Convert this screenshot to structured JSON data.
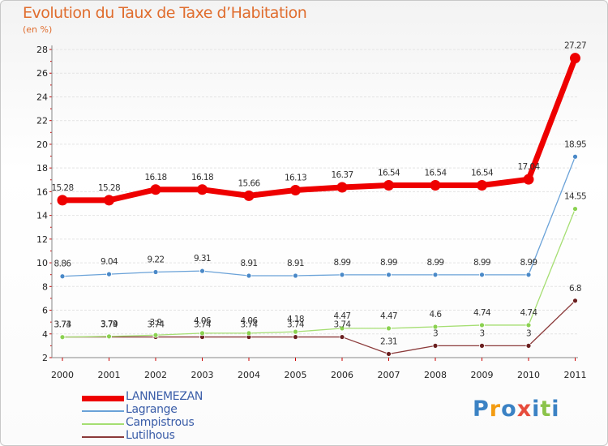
{
  "title": "Evolution du Taux de Taxe d’Habitation",
  "unit": "(en %)",
  "brand": {
    "letters": [
      "P",
      "r",
      "o",
      "x",
      "i",
      "t",
      "i"
    ],
    "colors": [
      "#3b82c4",
      "#f39c12",
      "#3b82c4",
      "#e74c3c",
      "#3b82c4",
      "#8bc34a",
      "#3b82c4"
    ]
  },
  "chart_data": {
    "type": "line",
    "title": "Evolution du Taux de Taxe d’Habitation",
    "ylabel": "(en %)",
    "xlabel": "",
    "x": [
      "2000",
      "2001",
      "2002",
      "2003",
      "2004",
      "2005",
      "2006",
      "2007",
      "2008",
      "2009",
      "2010",
      "2011"
    ],
    "ylim": [
      2,
      28
    ],
    "yticks": [
      "2",
      "4",
      "6",
      "8",
      "10",
      "12",
      "14",
      "16",
      "18",
      "20",
      "22",
      "24",
      "26",
      "28"
    ],
    "grid": "horizontal",
    "legend_position": "bottom-left",
    "series": [
      {
        "name": "LANNEMEZAN",
        "color": "#ee0000",
        "values": [
          15.28,
          15.28,
          16.18,
          16.18,
          15.66,
          16.13,
          16.37,
          16.54,
          16.54,
          16.54,
          17.04,
          27.27
        ],
        "labels": [
          "15.28",
          "15.28",
          "16.18",
          "16.18",
          "15.66",
          "16.13",
          "16.37",
          "16.54",
          "16.54",
          "16.54",
          "17.04",
          "27.27"
        ]
      },
      {
        "name": "Lagrange",
        "color": "#5b9bd5",
        "values": [
          8.86,
          9.04,
          9.22,
          9.31,
          8.91,
          8.91,
          8.99,
          8.99,
          8.99,
          8.99,
          8.99,
          18.95
        ],
        "labels": [
          "8.86",
          "9.04",
          "9.22",
          "9.31",
          "8.91",
          "8.91",
          "8.99",
          "8.99",
          "8.99",
          "8.99",
          "8.99",
          "18.95"
        ]
      },
      {
        "name": "Campistrous",
        "color": "#99dd66",
        "values": [
          3.73,
          3.79,
          3.9,
          4.06,
          4.06,
          4.18,
          4.47,
          4.47,
          4.6,
          4.74,
          4.74,
          14.55
        ],
        "labels": [
          "3.73",
          "3.79",
          "3.9",
          "4.06",
          "4.06",
          "4.18",
          "4.47",
          "4.47",
          "4.6",
          "4.74",
          "4.74",
          "14.55"
        ]
      },
      {
        "name": "Lutilhous",
        "color": "#7a2b2b",
        "values": [
          3.74,
          3.74,
          3.74,
          3.74,
          3.74,
          3.74,
          3.74,
          2.31,
          3,
          3,
          3,
          6.8
        ],
        "labels": [
          "3.74",
          "3.74",
          "3.74",
          "3.74",
          "3.74",
          "3.74",
          "3.74",
          "2.31",
          "3",
          "3",
          "3",
          "6.8"
        ]
      }
    ]
  }
}
